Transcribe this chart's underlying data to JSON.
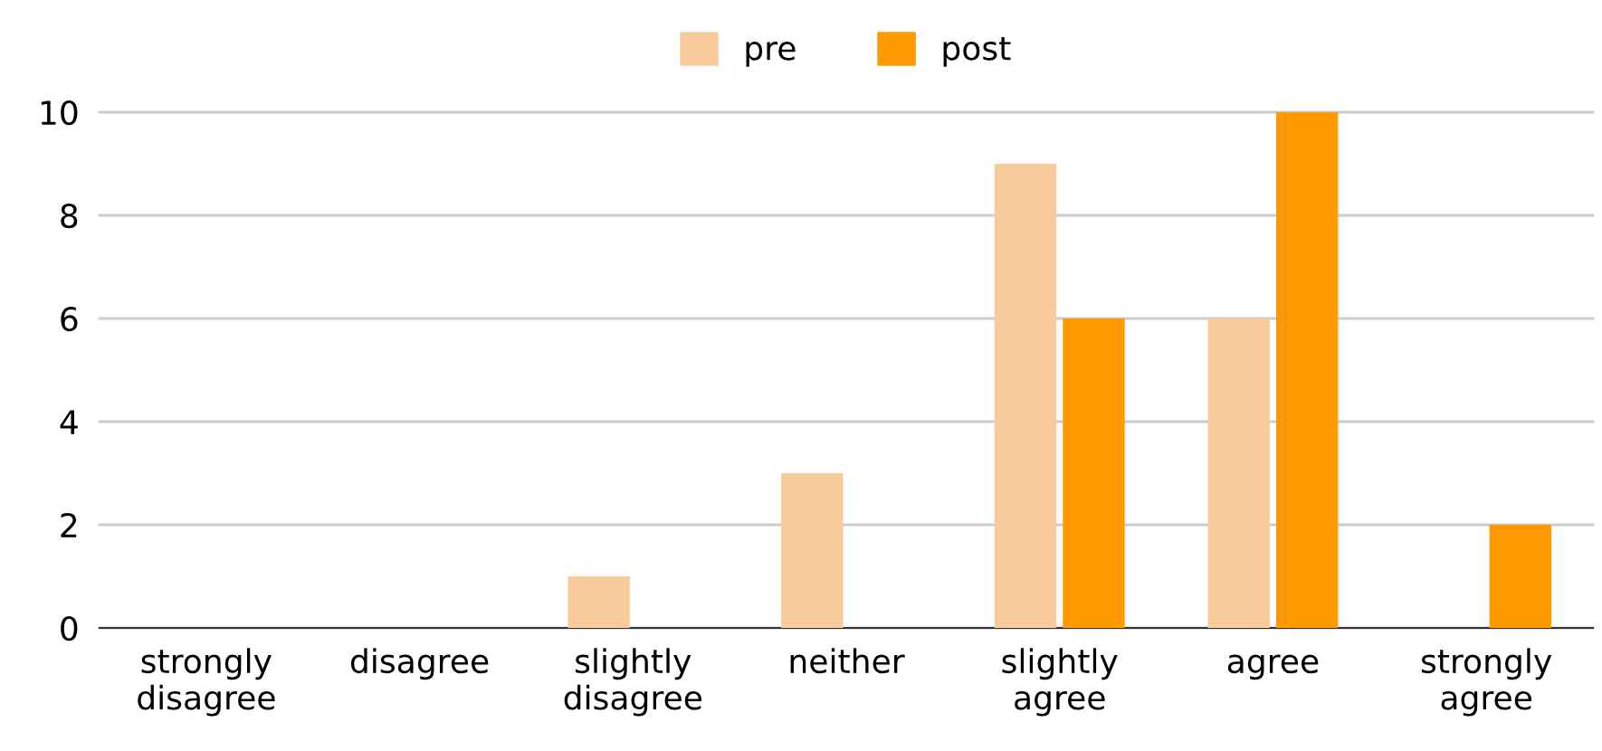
{
  "chart_data": {
    "type": "bar",
    "categories": [
      "strongly disagree",
      "disagree",
      "slightly disagree",
      "neither",
      "slightly agree",
      "agree",
      "strongly agree"
    ],
    "series": [
      {
        "name": "pre",
        "color": "#f9cb9c",
        "values": [
          0,
          0,
          1,
          3,
          9,
          6,
          0
        ]
      },
      {
        "name": "post",
        "color": "#ff9900",
        "values": [
          0,
          0,
          0,
          0,
          6,
          10,
          2
        ]
      }
    ],
    "ylim": [
      0,
      10
    ],
    "yticks": [
      0,
      2,
      4,
      6,
      8,
      10
    ],
    "grid": "y",
    "legend": "top"
  }
}
